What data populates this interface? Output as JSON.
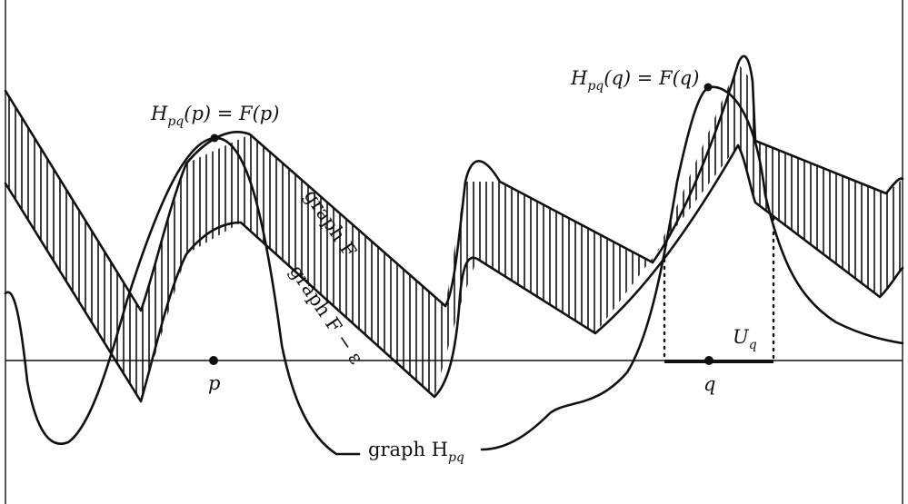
{
  "figure": {
    "labels": {
      "equation_p_lhs": "H",
      "equation_p_sub": "pq",
      "equation_p_rest": "(p) = F(p)",
      "equation_q_lhs": "H",
      "equation_q_sub": "pq",
      "equation_q_rest": "(q) = F(q)",
      "graph_f": "graph F",
      "graph_f_eps": "graph F − ε",
      "graph_h_prefix": "graph H",
      "graph_h_sub": "pq",
      "point_p": "p",
      "point_q": "q",
      "u_q_main": "U",
      "u_q_sub": "q"
    }
  }
}
